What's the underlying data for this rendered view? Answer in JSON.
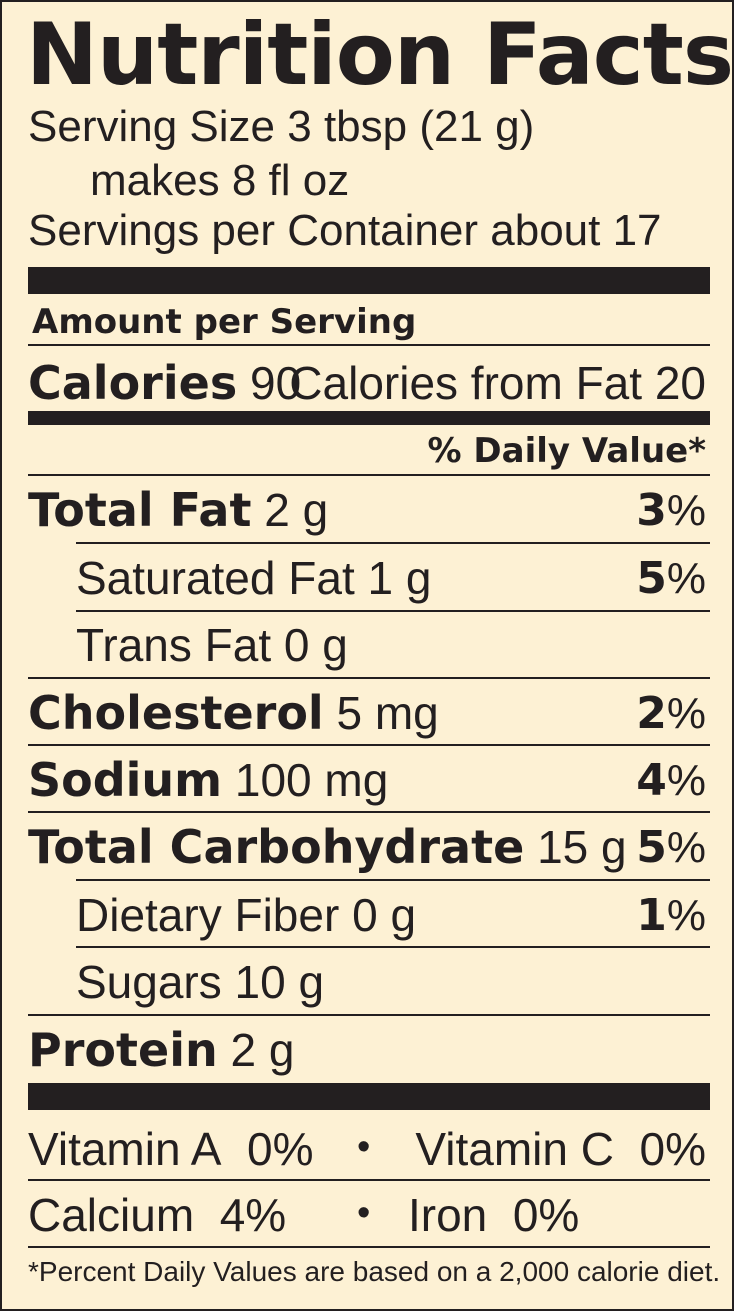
{
  "title": "Nutrition Facts",
  "serving": {
    "size_label": "Serving Size",
    "size_value": "3 tbsp (21 g)",
    "makes": "makes 8 fl oz",
    "per_container_label": "Servings per Container",
    "per_container_value": "about 17"
  },
  "amount_per_serving": "Amount per Serving",
  "calories": {
    "label": "Calories",
    "value": "90",
    "from_fat_label": "Calories from Fat",
    "from_fat_value": "20"
  },
  "daily_value_header": "% Daily Value*",
  "nutrients": [
    {
      "name": "Total Fat",
      "amount": "2 g",
      "dv": "3",
      "unit": "%"
    },
    {
      "name": "Saturated Fat",
      "amount": "1 g",
      "dv": "5",
      "unit": "%"
    },
    {
      "name": "Trans Fat",
      "amount": "0 g",
      "dv": "",
      "unit": ""
    },
    {
      "name": "Cholesterol",
      "amount": "5 mg",
      "dv": "2",
      "unit": "%"
    },
    {
      "name": "Sodium",
      "amount": "100 mg",
      "dv": "4",
      "unit": "%"
    },
    {
      "name": "Total Carbohydrate",
      "amount": "15 g",
      "dv": "5",
      "unit": "%"
    },
    {
      "name": "Dietary Fiber",
      "amount": "0 g",
      "dv": "1",
      "unit": "%"
    },
    {
      "name": "Sugars",
      "amount": "10 g",
      "dv": "",
      "unit": ""
    },
    {
      "name": "Protein",
      "amount": "2 g",
      "dv": "",
      "unit": ""
    }
  ],
  "vitamins": [
    {
      "name": "Vitamin A",
      "value": "0%"
    },
    {
      "name": "Vitamin C",
      "value": "0%"
    },
    {
      "name": "Calcium",
      "value": "4%"
    },
    {
      "name": "Iron",
      "value": "0%"
    }
  ],
  "bullet": "•",
  "footnote": "*Percent Daily Values are based on a 2,000 calorie diet.",
  "colors": {
    "background": "#fdf1d4",
    "ink": "#231f20"
  }
}
